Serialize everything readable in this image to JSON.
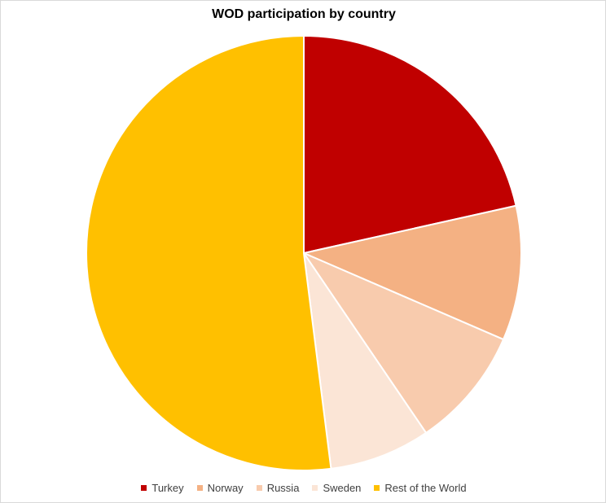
{
  "chart_data": {
    "type": "pie",
    "title": "WOD participation by country",
    "legend_position": "bottom",
    "slices": [
      {
        "label": "Turkey",
        "value": 21.5,
        "color": "#c00000"
      },
      {
        "label": "Norway",
        "value": 10.0,
        "color": "#f4b183"
      },
      {
        "label": "Russia",
        "value": 9.0,
        "color": "#f8cbad"
      },
      {
        "label": "Sweden",
        "value": 7.5,
        "color": "#fbe5d6"
      },
      {
        "label": "Rest of the World",
        "value": 52.0,
        "color": "#ffc000"
      }
    ]
  }
}
